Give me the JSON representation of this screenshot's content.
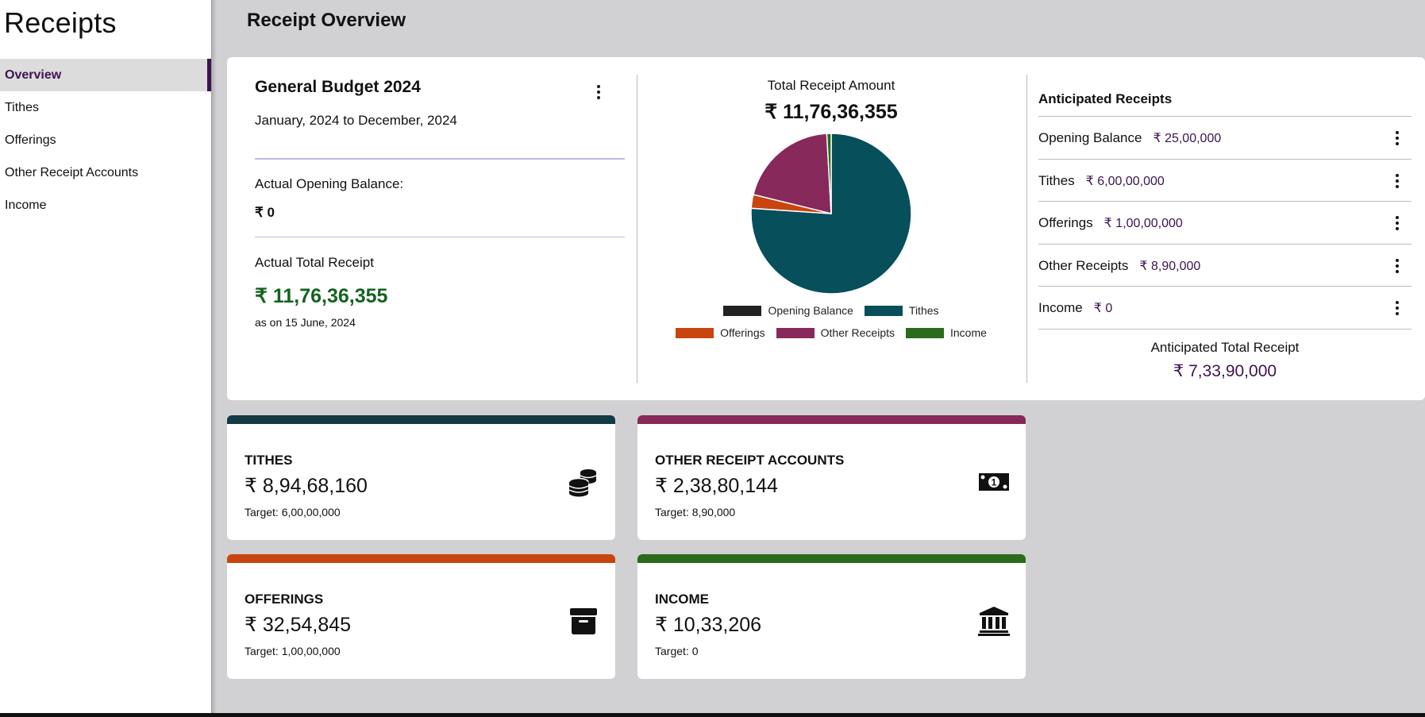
{
  "sidebar": {
    "title": "Receipts",
    "items": [
      {
        "label": "Overview",
        "active": true
      },
      {
        "label": "Tithes"
      },
      {
        "label": "Offerings"
      },
      {
        "label": "Other Receipt Accounts"
      },
      {
        "label": "Income"
      }
    ]
  },
  "header": {
    "title": "Receipt Overview"
  },
  "budget": {
    "title": "General Budget 2024",
    "range": "January, 2024 to December, 2024",
    "opening_label": "Actual Opening Balance:",
    "opening_value": "₹ 0",
    "total_label": "Actual Total Receipt",
    "total_value": "₹ 11,76,36,355",
    "as_of": "as on 15 June, 2024",
    "menu_icon": "kebab-menu-icon"
  },
  "chart": {
    "title": "Total Receipt Amount",
    "total": "₹ 11,76,36,355"
  },
  "chart_data": {
    "type": "pie",
    "title": "Total Receipt Amount",
    "categories": [
      "Opening Balance",
      "Tithes",
      "Offerings",
      "Other Receipts",
      "Income"
    ],
    "values": [
      0,
      89468160,
      3254845,
      23880144,
      1033206
    ],
    "colors": [
      "#222222",
      "#074f5a",
      "#c8450f",
      "#87295a",
      "#2a6b1c"
    ],
    "legend": "bottom"
  },
  "anticipated": {
    "title": "Anticipated Receipts",
    "rows": [
      {
        "name": "Opening Balance",
        "amount": "₹ 25,00,000"
      },
      {
        "name": "Tithes",
        "amount": "₹ 6,00,00,000"
      },
      {
        "name": "Offerings",
        "amount": "₹ 1,00,00,000"
      },
      {
        "name": "Other Receipts",
        "amount": "₹ 8,90,000"
      },
      {
        "name": "Income",
        "amount": "₹ 0"
      }
    ],
    "total_label": "Anticipated Total Receipt",
    "total_value": "₹ 7,33,90,000"
  },
  "cards": [
    {
      "title": "TITHES",
      "amount": "₹ 8,94,68,160",
      "target": "Target: 6,00,00,000",
      "color": "#143a46",
      "icon": "coins-stack-icon"
    },
    {
      "title": "OTHER RECEIPT ACCOUNTS",
      "amount": "₹ 2,38,80,144",
      "target": "Target: 8,90,000",
      "color": "#87295a",
      "icon": "money-bill-icon"
    },
    {
      "title": "OFFERINGS",
      "amount": "₹ 32,54,845",
      "target": "Target: 1,00,00,000",
      "color": "#c8450f",
      "icon": "archive-box-icon"
    },
    {
      "title": "INCOME",
      "amount": "₹ 10,33,206",
      "target": "Target: 0",
      "color": "#2a6b1c",
      "icon": "bank-building-icon"
    }
  ]
}
